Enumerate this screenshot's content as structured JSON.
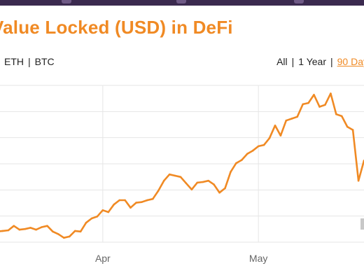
{
  "page": {
    "title": "Value Locked (USD) in DeFi",
    "asset_options": [
      "ETH",
      "BTC"
    ],
    "range_options": [
      "All",
      "1 Year",
      "90 Day"
    ],
    "selected_range": "90 Day"
  },
  "colors": {
    "accent": "#f08a24",
    "line": "#f08a24",
    "grid": "#e6e6e6",
    "header_bar": "#3b2a4f",
    "text": "#222222",
    "axis_label": "#666666"
  },
  "chart_data": {
    "type": "line",
    "title": "Value Locked (USD) in DeFi",
    "xlabel": "",
    "ylabel": "",
    "x_tick_labels": [
      "Apr",
      "May"
    ],
    "grid": true,
    "y_gridlines": 6,
    "series": [
      {
        "values": [
          1.7,
          1.8,
          1.9,
          2.6,
          2.0,
          2.1,
          2.3,
          2.0,
          2.4,
          2.6,
          1.7,
          1.3,
          0.7,
          0.9,
          1.8,
          1.7,
          3.1,
          3.8,
          4.1,
          5.1,
          4.8,
          6.0,
          6.7,
          6.7,
          5.5,
          6.3,
          6.4,
          6.7,
          6.9,
          8.2,
          9.8,
          10.8,
          10.6,
          10.4,
          9.4,
          8.4,
          9.5,
          9.6,
          9.8,
          9.2,
          7.9,
          8.6,
          11.2,
          12.6,
          13.1,
          14.1,
          14.6,
          15.3,
          15.5,
          16.6,
          18.6,
          17.0,
          19.4,
          19.7,
          20.0,
          22.0,
          22.2,
          23.5,
          21.6,
          21.9,
          23.7,
          20.4,
          20.1,
          18.4,
          17.9,
          9.8,
          13.0
        ],
        "x_labels_at_index": {
          "Apr": 19,
          "May": 47
        }
      }
    ]
  }
}
